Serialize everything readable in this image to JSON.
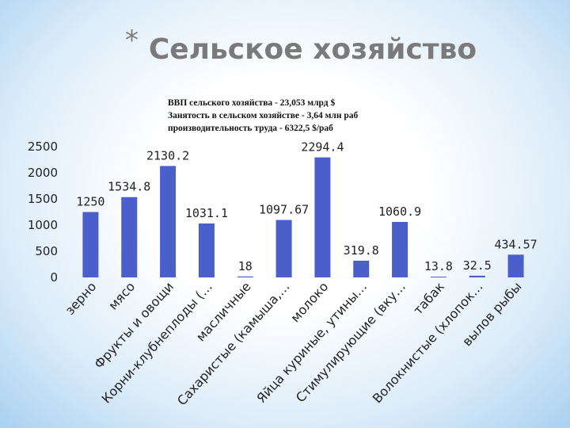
{
  "marker": "*",
  "chart_data": {
    "type": "bar",
    "title": "Сельское хозяйство",
    "annotations": [
      "ВВП сельского хозяйства - 23,053 млрд $",
      "Занятость в сельском хозяйстве - 3,64 млн раб",
      "производительность труда - 6322,5 $/раб"
    ],
    "categories": [
      "зерно",
      "мясо",
      "Фрукты и овощи",
      "Корни-клубнеплоды (…",
      "масличные",
      "Сахаристые (камыша,…",
      "молоко",
      "Яйца куриные, утины…",
      "Стимулирующие (вку…",
      "табак",
      "Волокнистые (хлопок…",
      "вылов рыбы"
    ],
    "values": [
      1250,
      1534.8,
      2130.2,
      1031.1,
      18,
      1097.67,
      2294.4,
      319.8,
      1060.9,
      13.8,
      32.5,
      434.57
    ],
    "color": "#4a5fc9",
    "ylim": [
      0,
      2500
    ],
    "yticks": [
      0,
      500,
      1000,
      1500,
      2000,
      2500
    ],
    "grid": false
  }
}
